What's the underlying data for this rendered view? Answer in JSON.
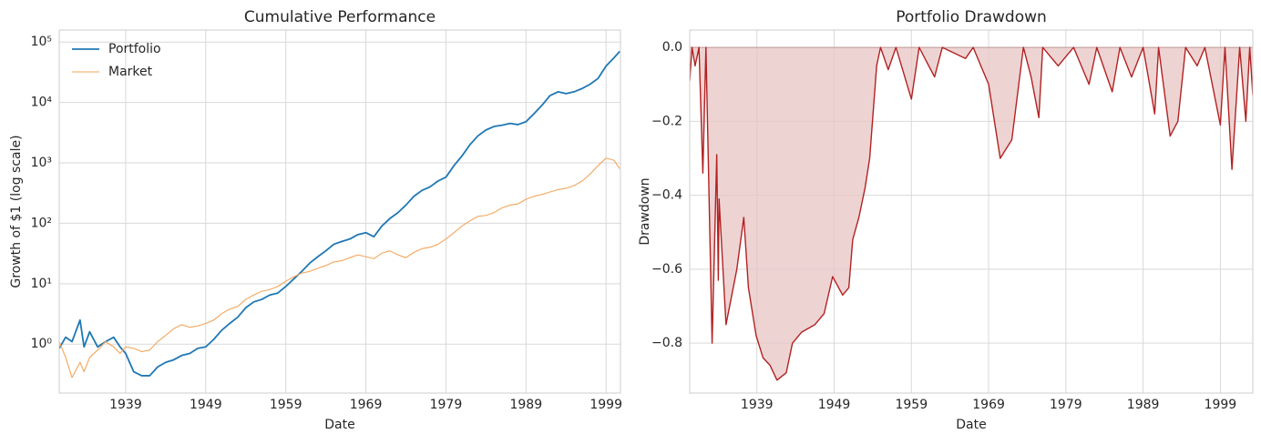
{
  "chart_data": [
    {
      "type": "line",
      "title": "Cumulative Performance",
      "x_label": "Date",
      "y_label": "Growth of $1 (log scale)",
      "log_y": true,
      "grid": true,
      "legend": "upper left",
      "xlim": [
        1930.7,
        2000.8
      ],
      "xticks": [
        1939,
        1949,
        1959,
        1969,
        1979,
        1989,
        1999
      ],
      "ylim": [
        0.155,
        158000
      ],
      "yticks": [
        {
          "value": 1,
          "label": "10⁰"
        },
        {
          "value": 10,
          "label": "10¹"
        },
        {
          "value": 100,
          "label": "10²"
        },
        {
          "value": 1000,
          "label": "10³"
        },
        {
          "value": 10000,
          "label": "10⁴"
        },
        {
          "value": 100000,
          "label": "10⁵"
        }
      ],
      "x": [
        1930.7,
        1931.5,
        1932.3,
        1933.3,
        1933.8,
        1934.5,
        1935.5,
        1936.5,
        1937.5,
        1938.3,
        1939,
        1940,
        1941,
        1942,
        1943,
        1944,
        1945,
        1946,
        1947,
        1948,
        1949,
        1950,
        1951,
        1952,
        1953,
        1954,
        1955,
        1956,
        1957,
        1958,
        1959,
        1960,
        1961,
        1962,
        1963,
        1964,
        1965,
        1966,
        1967,
        1968,
        1969,
        1970,
        1971,
        1972,
        1973,
        1974,
        1975,
        1976,
        1977,
        1978,
        1979,
        1980,
        1981,
        1982,
        1983,
        1984,
        1985,
        1986,
        1987,
        1988,
        1989,
        1990,
        1991,
        1992,
        1993,
        1994,
        1995,
        1996,
        1997,
        1998,
        1999,
        2000,
        2000.7
      ],
      "series": [
        {
          "name": "Portfolio",
          "color": "#1f77b4",
          "width": 1.8,
          "values": [
            0.85,
            1.3,
            1.1,
            2.5,
            0.9,
            1.6,
            0.9,
            1.1,
            1.3,
            0.9,
            0.7,
            0.35,
            0.3,
            0.3,
            0.42,
            0.5,
            0.55,
            0.65,
            0.7,
            0.85,
            0.9,
            1.2,
            1.7,
            2.2,
            2.8,
            4,
            5,
            5.5,
            6.5,
            7,
            9,
            12,
            16,
            22,
            28,
            35,
            45,
            50,
            55,
            65,
            70,
            60,
            90,
            120,
            150,
            200,
            280,
            350,
            400,
            500,
            580,
            900,
            1300,
            2000,
            2800,
            3500,
            4000,
            4200,
            4500,
            4300,
            4800,
            6500,
            9000,
            13000,
            15000,
            14000,
            15000,
            17000,
            20000,
            25000,
            40000,
            55000,
            70000
          ]
        },
        {
          "name": "Market",
          "color": "#f4a55a",
          "width": 1.1,
          "values": [
            1.1,
            0.6,
            0.28,
            0.5,
            0.35,
            0.6,
            0.8,
            1.1,
            0.9,
            0.7,
            0.9,
            0.85,
            0.75,
            0.8,
            1.1,
            1.4,
            1.8,
            2.1,
            1.9,
            2.0,
            2.2,
            2.5,
            3.2,
            3.8,
            4.2,
            5.5,
            6.5,
            7.5,
            8,
            9,
            11,
            13,
            15,
            16,
            18,
            20,
            23,
            24,
            27,
            30,
            28,
            26,
            32,
            35,
            30,
            27,
            33,
            38,
            40,
            45,
            55,
            70,
            90,
            110,
            130,
            135,
            150,
            180,
            200,
            210,
            250,
            280,
            300,
            330,
            360,
            380,
            420,
            500,
            650,
            900,
            1200,
            1100,
            800
          ]
        }
      ]
    },
    {
      "type": "area",
      "title": "Portfolio Drawdown",
      "x_label": "Date",
      "y_label": "Drawdown",
      "grid": true,
      "xlim": [
        1930.3,
        2003.2
      ],
      "xticks": [
        1939,
        1949,
        1959,
        1969,
        1979,
        1989,
        1999
      ],
      "ylim": [
        -0.935,
        0.047
      ],
      "yticks": [
        {
          "value": 0,
          "label": "0.0"
        },
        {
          "value": -0.2,
          "label": "−0.2"
        },
        {
          "value": -0.4,
          "label": "−0.4"
        },
        {
          "value": -0.6,
          "label": "−0.6"
        },
        {
          "value": -0.8,
          "label": "−0.8"
        }
      ],
      "x": [
        1930.3,
        1930.6,
        1931,
        1931.5,
        1932,
        1932.4,
        1933.2,
        1933.8,
        1934.0,
        1934.1,
        1935.0,
        1936.4,
        1937.3,
        1937.9,
        1938.9,
        1939.8,
        1940.7,
        1941.6,
        1942.8,
        1943.6,
        1944.8,
        1946.5,
        1947.7,
        1948.8,
        1950.1,
        1950.9,
        1951.4,
        1952.2,
        1953,
        1953.6,
        1954.5,
        1955,
        1956,
        1957,
        1959,
        1960,
        1962,
        1963,
        1966,
        1967,
        1969,
        1970.5,
        1972,
        1973.5,
        1974.5,
        1975.5,
        1976,
        1978,
        1980,
        1982,
        1983,
        1985,
        1986,
        1987.5,
        1989,
        1990.5,
        1991,
        1992.5,
        1993.5,
        1994.5,
        1996,
        1997,
        1999,
        1999.6,
        2000.5,
        2001.5,
        2002.3,
        2002.8,
        2003.2
      ],
      "series": [
        {
          "name": "Drawdown",
          "color": "#b22222",
          "fill": "#e8c4c4",
          "values": [
            -0.09,
            0,
            -0.05,
            0,
            -0.34,
            0,
            -0.8,
            -0.29,
            -0.63,
            -0.41,
            -0.75,
            -0.6,
            -0.46,
            -0.65,
            -0.78,
            -0.84,
            -0.86,
            -0.9,
            -0.88,
            -0.8,
            -0.77,
            -0.75,
            -0.72,
            -0.62,
            -0.67,
            -0.65,
            -0.52,
            -0.46,
            -0.38,
            -0.3,
            -0.05,
            0,
            -0.06,
            0,
            -0.14,
            0,
            -0.08,
            0,
            -0.03,
            0,
            -0.1,
            -0.3,
            -0.25,
            0,
            -0.08,
            -0.19,
            0,
            -0.05,
            0,
            -0.1,
            0,
            -0.12,
            0,
            -0.08,
            0,
            -0.18,
            0,
            -0.24,
            -0.2,
            0,
            -0.05,
            0,
            -0.21,
            0,
            -0.33,
            0,
            -0.2,
            0,
            -0.13
          ]
        }
      ]
    }
  ]
}
